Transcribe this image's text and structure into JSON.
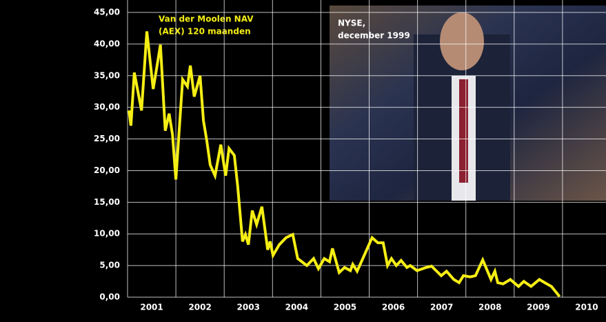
{
  "chart_data": {
    "type": "line",
    "title": [
      "Van der Moolen NAV",
      "(AEX) 120 maanden"
    ],
    "photo_caption": [
      "NYSE,",
      "december 1999"
    ],
    "x": [
      2001.03,
      2001.07,
      2001.14,
      2001.29,
      2001.4,
      2001.53,
      2001.6,
      2001.68,
      2001.78,
      2001.86,
      2001.93,
      2002.0,
      2002.14,
      2002.24,
      2002.3,
      2002.38,
      2002.5,
      2002.57,
      2002.64,
      2002.71,
      2002.81,
      2002.93,
      2003.03,
      2003.1,
      2003.21,
      2003.28,
      2003.38,
      2003.44,
      2003.5,
      2003.58,
      2003.67,
      2003.78,
      2003.9,
      2003.95,
      2004.01,
      2004.14,
      2004.28,
      2004.42,
      2004.52,
      2004.71,
      2004.85,
      2004.95,
      2005.07,
      2005.18,
      2005.24,
      2005.38,
      2005.49,
      2005.61,
      2005.66,
      2005.75,
      2005.85,
      2006.06,
      2006.18,
      2006.29,
      2006.38,
      2006.46,
      2006.56,
      2006.66,
      2006.78,
      2006.85,
      2006.99,
      2007.18,
      2007.29,
      2007.49,
      2007.6,
      2007.75,
      2007.86,
      2007.95,
      2008.09,
      2008.2,
      2008.35,
      2008.52,
      2008.6,
      2008.66,
      2008.77,
      2008.92,
      2009.09,
      2009.2,
      2009.35,
      2009.52,
      2009.63,
      2009.77,
      2009.94
    ],
    "series": [
      {
        "color": "#f5ee14",
        "values": [
          29.5,
          27.1,
          35.5,
          29.5,
          42.0,
          32.9,
          36.1,
          39.9,
          26.3,
          29.0,
          25.7,
          18.6,
          34.4,
          33.3,
          36.6,
          31.7,
          35.0,
          27.9,
          24.7,
          20.9,
          19.2,
          24.1,
          19.2,
          23.5,
          22.4,
          17.5,
          8.8,
          9.9,
          8.3,
          13.7,
          11.5,
          14.3,
          7.5,
          8.8,
          6.6,
          8.3,
          9.4,
          9.9,
          6.1,
          5.0,
          6.1,
          4.5,
          6.1,
          5.6,
          7.7,
          3.9,
          4.7,
          4.2,
          5.2,
          4.1,
          5.8,
          9.4,
          8.6,
          8.6,
          5.0,
          6.1,
          5.0,
          5.8,
          4.7,
          5.0,
          4.2,
          4.7,
          4.9,
          3.4,
          4.1,
          2.8,
          2.3,
          3.4,
          3.2,
          3.4,
          5.9,
          2.8,
          4.1,
          2.3,
          2.1,
          2.8,
          1.7,
          2.5,
          1.7,
          2.8,
          2.3,
          1.7,
          0.1
        ]
      }
    ],
    "xlim": [
      2001,
      2010.9
    ],
    "xticks": [
      2001,
      2002,
      2003,
      2004,
      2005,
      2006,
      2007,
      2008,
      2009,
      2010
    ],
    "ylim": [
      0,
      45
    ],
    "yticks": [
      {
        "value": 0,
        "label": "0,00"
      },
      {
        "value": 5,
        "label": "5,00"
      },
      {
        "value": 10,
        "label": "10,00"
      },
      {
        "value": 15,
        "label": "15,00"
      },
      {
        "value": 20,
        "label": "20,00"
      },
      {
        "value": 25,
        "label": "25,00"
      },
      {
        "value": 30,
        "label": "30,00"
      },
      {
        "value": 35,
        "label": "35,00"
      },
      {
        "value": 40,
        "label": "40,00"
      },
      {
        "value": 45,
        "label": "45,00"
      }
    ],
    "grid": true
  }
}
